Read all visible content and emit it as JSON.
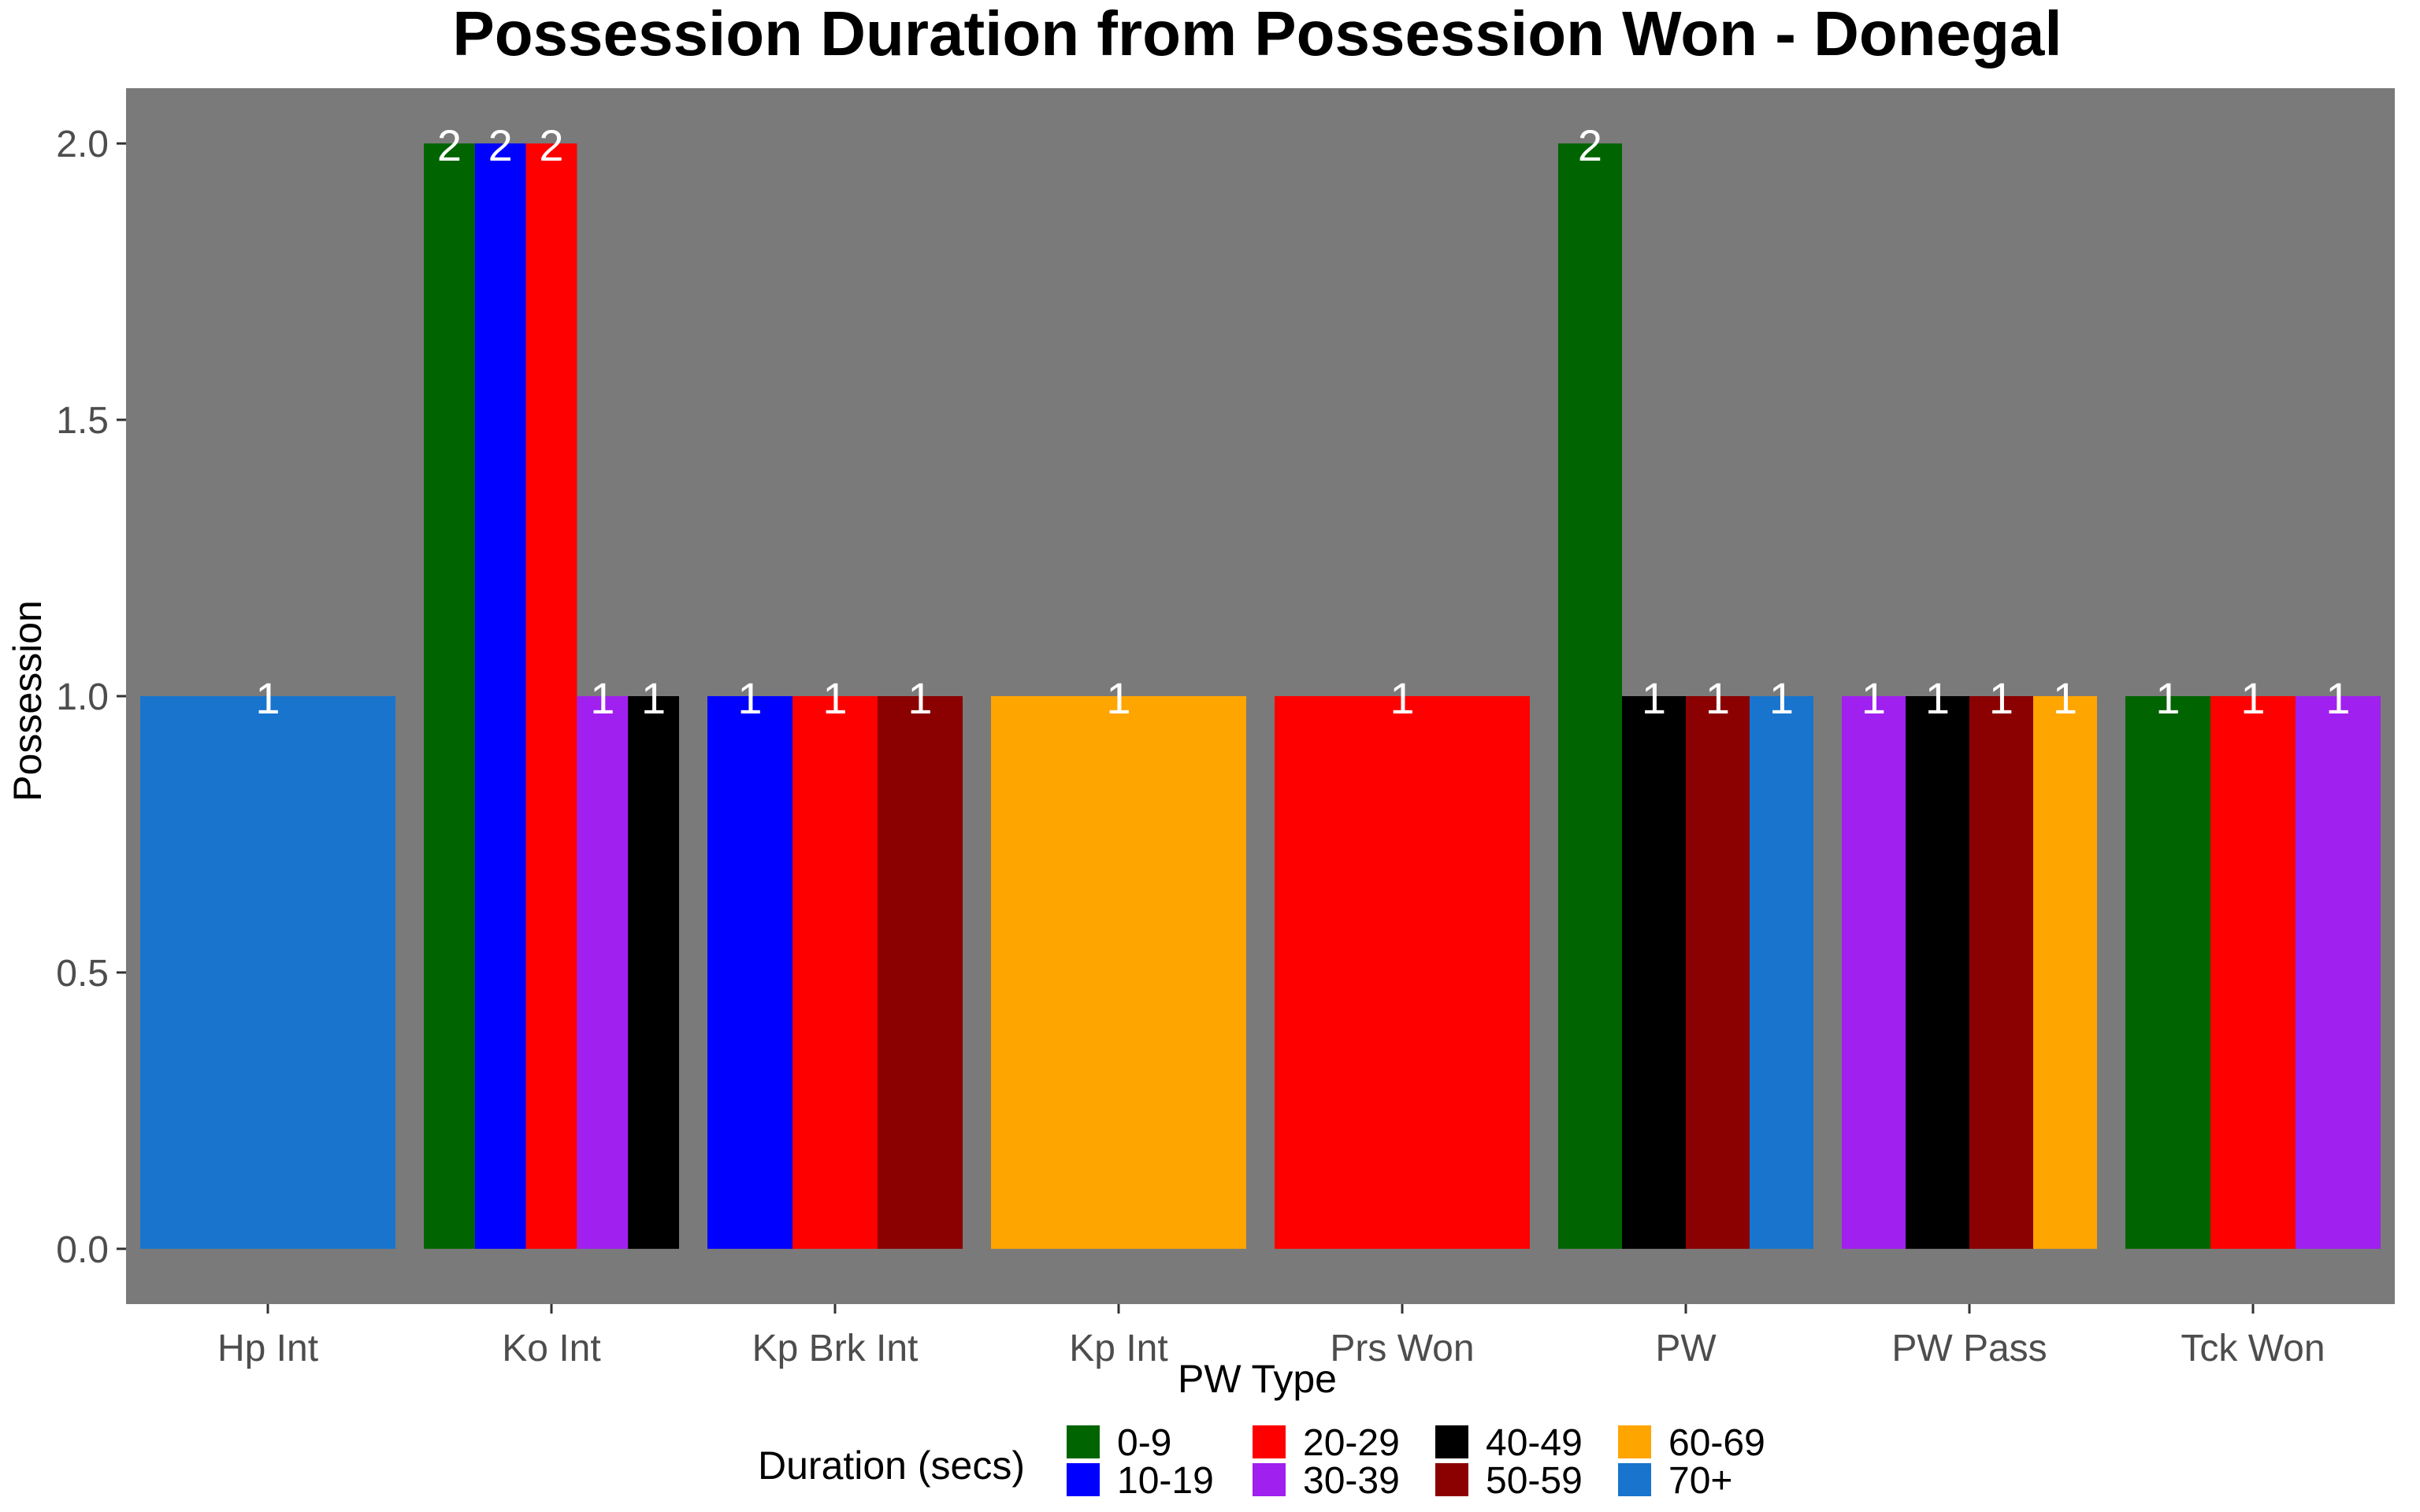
{
  "chart_data": {
    "type": "bar",
    "title": "Possession Duration from Possession Won - Donegal",
    "xlabel": "PW Type",
    "ylabel": "Possession",
    "ylim": [
      -0.1,
      2.1
    ],
    "yticks": [
      "0.0",
      "0.5",
      "1.0",
      "1.5",
      "2.0"
    ],
    "ytick_values": [
      0,
      0.5,
      1.0,
      1.5,
      2.0
    ],
    "background": "#7a7a7a",
    "grid": false,
    "legend_position": "bottom",
    "legend_title": "Duration (secs)",
    "durations": [
      {
        "name": "0-9",
        "color": "#006400"
      },
      {
        "name": "10-19",
        "color": "#0000ff"
      },
      {
        "name": "20-29",
        "color": "#ff0000"
      },
      {
        "name": "30-39",
        "color": "#a020f0"
      },
      {
        "name": "40-49",
        "color": "#000000"
      },
      {
        "name": "50-59",
        "color": "#8b0000"
      },
      {
        "name": "60-69",
        "color": "#ffa500"
      },
      {
        "name": "70+",
        "color": "#1874cd"
      }
    ],
    "categories": [
      {
        "name": "Hp Int",
        "bars": [
          {
            "duration": "70+",
            "value": 1
          }
        ]
      },
      {
        "name": "Ko Int",
        "bars": [
          {
            "duration": "0-9",
            "value": 2
          },
          {
            "duration": "10-19",
            "value": 2
          },
          {
            "duration": "20-29",
            "value": 2
          },
          {
            "duration": "30-39",
            "value": 1
          },
          {
            "duration": "40-49",
            "value": 1
          }
        ]
      },
      {
        "name": "Kp Brk Int",
        "bars": [
          {
            "duration": "10-19",
            "value": 1
          },
          {
            "duration": "20-29",
            "value": 1
          },
          {
            "duration": "50-59",
            "value": 1
          }
        ]
      },
      {
        "name": "Kp Int",
        "bars": [
          {
            "duration": "60-69",
            "value": 1
          }
        ]
      },
      {
        "name": "Prs Won",
        "bars": [
          {
            "duration": "20-29",
            "value": 1
          }
        ]
      },
      {
        "name": "PW",
        "bars": [
          {
            "duration": "0-9",
            "value": 2
          },
          {
            "duration": "40-49",
            "value": 1
          },
          {
            "duration": "50-59",
            "value": 1
          },
          {
            "duration": "70+",
            "value": 1
          }
        ]
      },
      {
        "name": "PW Pass",
        "bars": [
          {
            "duration": "30-39",
            "value": 1
          },
          {
            "duration": "40-49",
            "value": 1
          },
          {
            "duration": "50-59",
            "value": 1
          },
          {
            "duration": "60-69",
            "value": 1
          }
        ]
      },
      {
        "name": "Tck Won",
        "bars": [
          {
            "duration": "0-9",
            "value": 1
          },
          {
            "duration": "20-29",
            "value": 1
          },
          {
            "duration": "30-39",
            "value": 1
          }
        ]
      }
    ]
  }
}
